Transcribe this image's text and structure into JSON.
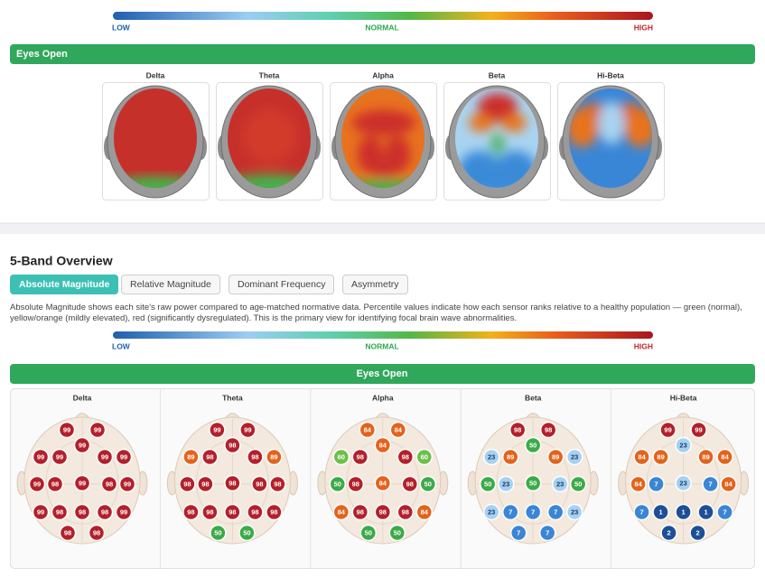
{
  "top_scale": {
    "low": "LOW",
    "normal": "NORMAL",
    "high": "HIGH"
  },
  "top_section": {
    "title": "Eyes Open",
    "bands": [
      "Delta",
      "Theta",
      "Alpha",
      "Beta",
      "Hi-Beta"
    ]
  },
  "overview": {
    "title": "5-Band Overview",
    "tabs": [
      "Absolute Magnitude",
      "Relative Magnitude",
      "Dominant Frequency",
      "Asymmetry"
    ],
    "description": "Absolute Magnitude shows each site's raw power compared to age-matched normative data. Percentile values indicate how each sensor ranks relative to a healthy population — green (normal), yellow/orange (mildly elevated), red (significantly dysregulated). This is the primary view for identifying focal brain wave abnormalities.",
    "scale": {
      "low": "LOW",
      "normal": "NORMAL",
      "high": "HIGH"
    },
    "condition": "Eyes Open",
    "heads": [
      {
        "band": "Delta",
        "values": [
          99,
          99,
          99,
          99,
          99,
          99,
          99,
          99,
          98,
          99,
          98,
          99,
          99,
          98,
          98,
          98,
          99,
          98,
          98
        ],
        "colors": [
          "#b3202a",
          "#b3202a",
          "#b3202a",
          "#b3202a",
          "#b3202a",
          "#b3202a",
          "#b3202a",
          "#b3202a",
          "#b3202a",
          "#b3202a",
          "#b3202a",
          "#b3202a",
          "#b3202a",
          "#b3202a",
          "#b3202a",
          "#b3202a",
          "#b3202a",
          "#b3202a",
          "#b3202a"
        ]
      },
      {
        "band": "Theta",
        "values": [
          99,
          99,
          98,
          89,
          98,
          98,
          89,
          98,
          98,
          98,
          98,
          98,
          98,
          98,
          98,
          98,
          98,
          50,
          50
        ],
        "colors": [
          "#b3202a",
          "#b3202a",
          "#b3202a",
          "#e3631d",
          "#b3202a",
          "#b3202a",
          "#e3631d",
          "#b3202a",
          "#b3202a",
          "#b3202a",
          "#b3202a",
          "#b3202a",
          "#b3202a",
          "#b3202a",
          "#b3202a",
          "#b3202a",
          "#b3202a",
          "#3daa48",
          "#3daa48"
        ]
      },
      {
        "band": "Alpha",
        "values": [
          84,
          84,
          84,
          60,
          98,
          98,
          60,
          50,
          98,
          84,
          98,
          50,
          84,
          98,
          98,
          98,
          84,
          50,
          50
        ],
        "colors": [
          "#e3631d",
          "#e3631d",
          "#e3631d",
          "#6cc04a",
          "#b3202a",
          "#b3202a",
          "#6cc04a",
          "#3daa48",
          "#b3202a",
          "#e3631d",
          "#b3202a",
          "#3daa48",
          "#e3631d",
          "#b3202a",
          "#b3202a",
          "#b3202a",
          "#e3631d",
          "#3daa48",
          "#3daa48"
        ]
      },
      {
        "band": "Beta",
        "values": [
          98,
          98,
          50,
          23,
          89,
          89,
          23,
          50,
          23,
          50,
          23,
          50,
          23,
          7,
          7,
          7,
          23,
          7,
          7
        ],
        "colors": [
          "#b3202a",
          "#b3202a",
          "#3daa48",
          "#a6d1f2",
          "#e3631d",
          "#e3631d",
          "#a6d1f2",
          "#3daa48",
          "#a6d1f2",
          "#3daa48",
          "#a6d1f2",
          "#3daa48",
          "#a6d1f2",
          "#3a86d4",
          "#3a86d4",
          "#3a86d4",
          "#a6d1f2",
          "#3a86d4",
          "#3a86d4"
        ]
      },
      {
        "band": "Hi-Beta",
        "values": [
          99,
          99,
          23,
          84,
          89,
          89,
          84,
          84,
          7,
          23,
          7,
          84,
          7,
          1,
          1,
          1,
          7,
          2,
          2
        ],
        "colors": [
          "#b3202a",
          "#b3202a",
          "#a6d1f2",
          "#e3631d",
          "#e3631d",
          "#e3631d",
          "#e3631d",
          "#e3631d",
          "#3a86d4",
          "#a6d1f2",
          "#3a86d4",
          "#e3631d",
          "#3a86d4",
          "#1d4f96",
          "#1d4f96",
          "#1d4f96",
          "#3a86d4",
          "#1d4f96",
          "#1d4f96"
        ]
      }
    ]
  }
}
